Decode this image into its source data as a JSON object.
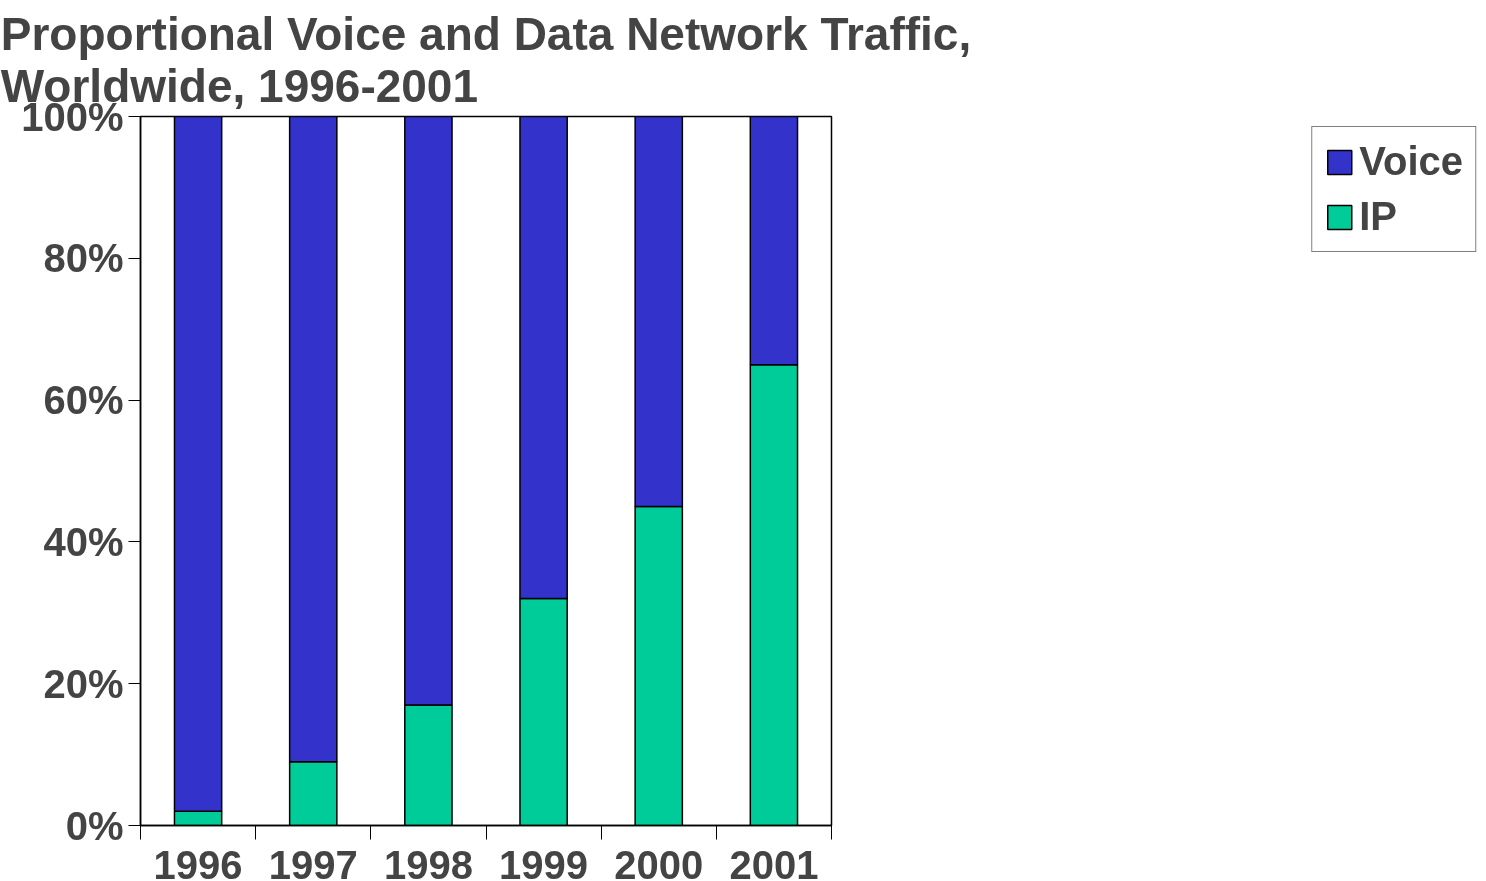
{
  "chart_data": {
    "type": "bar",
    "title": "Proportional Voice and Data Network Traffic, Worldwide, 1996-2001",
    "categories": [
      "1996",
      "1997",
      "1998",
      "1999",
      "2000",
      "2001"
    ],
    "stacked": true,
    "series": [
      {
        "name": "IP",
        "color": "#00cc99",
        "values": [
          2,
          9,
          17,
          32,
          45,
          65
        ]
      },
      {
        "name": "Voice",
        "color": "#3333cc",
        "values": [
          98,
          91,
          83,
          68,
          55,
          35
        ]
      }
    ],
    "ylim": [
      0,
      100
    ],
    "yticks": [
      {
        "value": 0,
        "label": "0%"
      },
      {
        "value": 20,
        "label": "20%"
      },
      {
        "value": 40,
        "label": "40%"
      },
      {
        "value": 60,
        "label": "60%"
      },
      {
        "value": 80,
        "label": "80%"
      },
      {
        "value": 100,
        "label": "100%"
      }
    ],
    "grid": false,
    "legend": "right"
  }
}
